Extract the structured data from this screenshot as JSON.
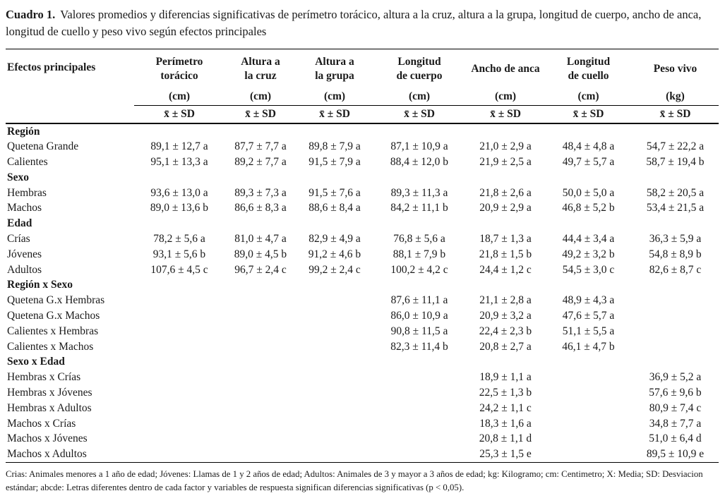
{
  "title": {
    "label": "Cuadro 1.",
    "text": "Valores promedios y diferencias significativas de perímetro torácico, altura a la cruz, altura a la grupa, longitud de cuerpo, ancho de anca, longitud de cuello y peso vivo según efectos principales"
  },
  "table": {
    "row_header": "Efectos principales",
    "columns": [
      {
        "name": "Perímetro\ntorácico",
        "unit": "(cm)",
        "stat": "x̄ ± SD"
      },
      {
        "name": "Altura a\nla cruz",
        "unit": "(cm)",
        "stat": "x̄ ± SD"
      },
      {
        "name": "Altura a\nla grupa",
        "unit": "(cm)",
        "stat": "x̄ ± SD"
      },
      {
        "name": "Longitud\nde cuerpo",
        "unit": "(cm)",
        "stat": "x̄ ± SD"
      },
      {
        "name": "Ancho de anca",
        "unit": "(cm)",
        "stat": "x̄ ± SD"
      },
      {
        "name": "Longitud\nde cuello",
        "unit": "(cm)",
        "stat": "x̄ ± SD"
      },
      {
        "name": "Peso vivo",
        "unit": "(kg)",
        "stat": "x̄ ± SD"
      }
    ],
    "sections": [
      {
        "header": "Región",
        "rows": [
          {
            "label": "Quetena Grande",
            "values": [
              "89,1 ± 12,7 a",
              "87,7 ± 7,7 a",
              "89,8 ± 7,9 a",
              "87,1 ± 10,9 a",
              "21,0 ± 2,9 a",
              "48,4 ± 4,8 a",
              "54,7 ± 22,2 a"
            ]
          },
          {
            "label": "Calientes",
            "values": [
              "95,1 ± 13,3 a",
              "89,2 ± 7,7 a",
              "91,5 ± 7,9 a",
              "88,4 ± 12,0 b",
              "21,9 ± 2,5 a",
              "49,7 ± 5,7 a",
              "58,7 ± 19,4 b"
            ]
          }
        ]
      },
      {
        "header": "Sexo",
        "rows": [
          {
            "label": "Hembras",
            "values": [
              "93,6 ± 13,0 a",
              "89,3 ± 7,3 a",
              "91,5 ± 7,6 a",
              "89,3 ± 11,3 a",
              "21,8 ± 2,6 a",
              "50,0 ± 5,0 a",
              "58,2 ± 20,5 a"
            ]
          },
          {
            "label": "Machos",
            "values": [
              "89,0 ± 13,6 b",
              "86,6 ± 8,3 a",
              "88,6 ± 8,4 a",
              "84,2 ± 11,1 b",
              "20,9 ± 2,9 a",
              "46,8 ± 5,2 b",
              "53,4 ± 21,5 a"
            ]
          }
        ]
      },
      {
        "header": "Edad",
        "rows": [
          {
            "label": "Crías",
            "values": [
              "78,2 ± 5,6 a",
              "81,0 ± 4,7 a",
              "82,9 ± 4,9 a",
              "76,8 ± 5,6 a",
              "18,7 ± 1,3 a",
              "44,4 ± 3,4 a",
              "36,3 ± 5,9 a"
            ]
          },
          {
            "label": "Jóvenes",
            "values": [
              "93,1 ± 5,6 b",
              "89,0 ± 4,5 b",
              "91,2 ± 4,6 b",
              "88,1 ± 7,9 b",
              "21,8 ± 1,5 b",
              "49,2 ± 3,2 b",
              "54,8 ± 8,9 b"
            ]
          },
          {
            "label": "Adultos",
            "values": [
              "107,6 ± 4,5 c",
              "96,7 ± 2,4 c",
              "99,2 ± 2,4 c",
              "100,2 ± 4,2 c",
              "24,4 ± 1,2 c",
              "54,5 ± 3,0 c",
              "82,6 ± 8,7 c"
            ]
          }
        ]
      },
      {
        "header": "Región x Sexo",
        "rows": [
          {
            "label": "Quetena G.x Hembras",
            "values": [
              "",
              "",
              "",
              "87,6 ± 11,1 a",
              "21,1 ± 2,8 a",
              "48,9 ± 4,3 a",
              ""
            ]
          },
          {
            "label": "Quetena G.x Machos",
            "values": [
              "",
              "",
              "",
              "86,0 ± 10,9 a",
              "20,9 ± 3,2 a",
              "47,6 ± 5,7 a",
              ""
            ]
          },
          {
            "label": "Calientes x Hembras",
            "values": [
              "",
              "",
              "",
              "90,8 ± 11,5 a",
              "22,4 ± 2,3 b",
              "51,1 ± 5,5 a",
              ""
            ]
          },
          {
            "label": "Calientes x Machos",
            "values": [
              "",
              "",
              "",
              "82,3 ± 11,4 b",
              "20,8 ± 2,7 a",
              "46,1 ± 4,7 b",
              ""
            ]
          }
        ]
      },
      {
        "header": "Sexo x Edad",
        "rows": [
          {
            "label": "Hembras x Crías",
            "values": [
              "",
              "",
              "",
              "",
              "18,9 ± 1,1 a",
              "",
              "36,9 ± 5,2 a"
            ]
          },
          {
            "label": "Hembras x Jóvenes",
            "values": [
              "",
              "",
              "",
              "",
              "22,5 ± 1,3 b",
              "",
              "57,6 ± 9,6 b"
            ]
          },
          {
            "label": "Hembras x Adultos",
            "values": [
              "",
              "",
              "",
              "",
              "24,2 ± 1,1 c",
              "",
              "80,9 ± 7,4 c"
            ]
          },
          {
            "label": "Machos x Crías",
            "values": [
              "",
              "",
              "",
              "",
              "18,3 ± 1,6 a",
              "",
              "34,8 ± 7,7 a"
            ]
          },
          {
            "label": "Machos x Jóvenes",
            "values": [
              "",
              "",
              "",
              "",
              "20,8 ± 1,1 d",
              "",
              "51,0 ± 6,4 d"
            ]
          },
          {
            "label": "Machos x Adultos",
            "values": [
              "",
              "",
              "",
              "",
              "25,3 ± 1,5 e",
              "",
              "89,5 ± 10,9 e"
            ]
          }
        ]
      }
    ]
  },
  "footnote": "Crias: Animales menores a 1 año de edad; Jóvenes: Llamas de 1 y 2 años de edad; Adultos: Animales de 3 y mayor a 3 años de edad; kg: Kilogramo; cm: Centimetro; X: Media; SD: Desviacion estándar; abcde: Letras diferentes dentro de cada factor y variables de respuesta significan diferencias significativas (p < 0,05)."
}
